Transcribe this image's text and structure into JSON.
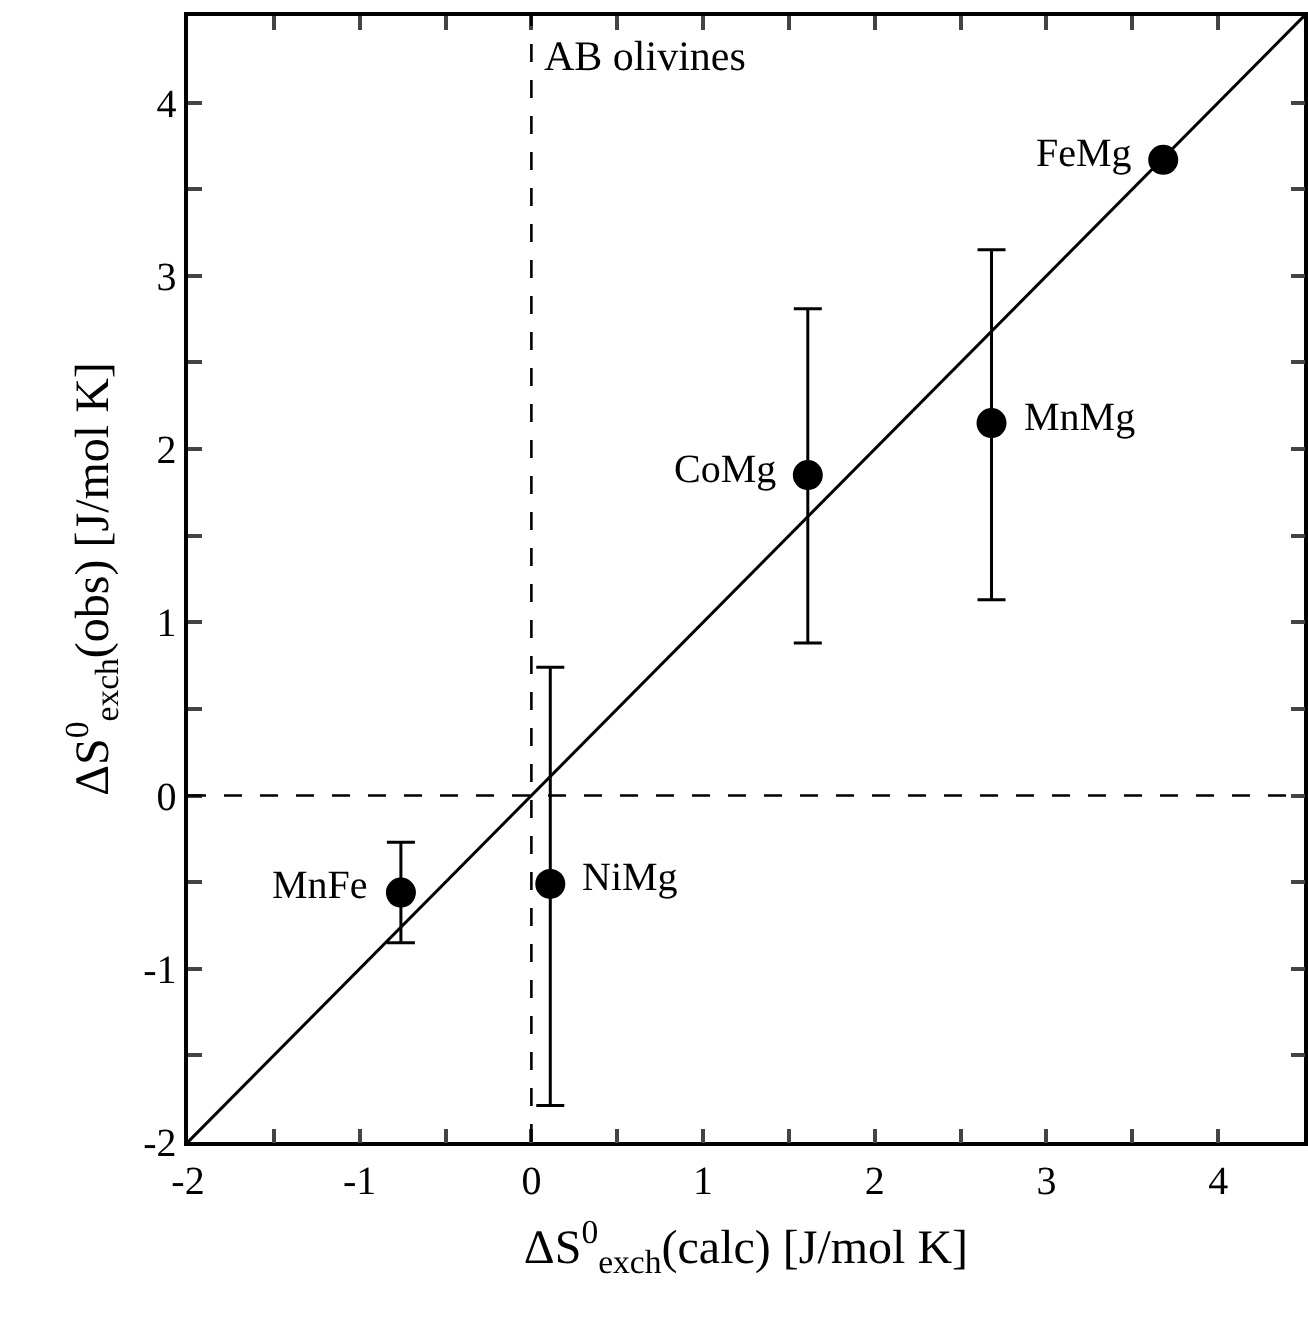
{
  "chart_data": {
    "type": "scatter",
    "xlabel": "ΔS$^{0}$$_{exch}$(calc) [J/mol K]",
    "ylabel": "ΔS$^{0}$$_{exch}$(obs) [J/mol K]",
    "xlim": [
      -2,
      4.5
    ],
    "ylim": [
      -2,
      4.5
    ],
    "xticks": [
      -2,
      {
        "value": -1.5,
        "label": null
      },
      -1,
      {
        "value": -0.5,
        "label": null
      },
      0,
      {
        "value": 0.5,
        "label": null
      },
      1,
      {
        "value": 1.5,
        "label": null
      },
      2,
      {
        "value": 2.5,
        "label": null
      },
      3,
      {
        "value": 3.5,
        "label": null
      },
      4
    ],
    "yticks": [
      -2,
      {
        "value": -1.5,
        "label": null
      },
      -1,
      {
        "value": -0.5,
        "label": null
      },
      0,
      {
        "value": 0.5,
        "label": null
      },
      1,
      {
        "value": 1.5,
        "label": null
      },
      2,
      {
        "value": 2.5,
        "label": null
      },
      3,
      {
        "value": 3.5,
        "label": null
      },
      4
    ],
    "grid": false,
    "marker": "circle",
    "series": [
      {
        "color": "#000000",
        "x": [
          -0.76,
          0.11,
          1.61,
          2.68,
          3.68
        ],
        "values": [
          -0.56,
          -0.51,
          1.85,
          2.15,
          3.67
        ],
        "errors": [
          [
            -0.85,
            -0.27
          ],
          [
            -1.79,
            0.74
          ],
          [
            0.88,
            2.81
          ],
          [
            1.13,
            3.15
          ],
          null
        ]
      },
      {
        "type": "line",
        "color": "#000000",
        "line_style": "solid",
        "marker": "none",
        "x": [
          -2,
          4.5
        ],
        "values": [
          -2,
          4.5
        ]
      }
    ],
    "ref_lines": [
      {
        "axis": "x",
        "value": 0,
        "label": "AB olivines",
        "line_style": "dashed",
        "color": "#000000"
      },
      {
        "axis": "y",
        "value": 0,
        "line_style": "dashed",
        "color": "#000000"
      }
    ],
    "annotations": [
      {
        "text": "MnFe",
        "x": -0.76,
        "y": -0.56
      },
      {
        "text": "NiMg",
        "x": 0.11,
        "y": -0.51
      },
      {
        "text": "CoMg",
        "x": 1.61,
        "y": 1.85
      },
      {
        "text": "MnMg",
        "x": 2.68,
        "y": 2.15
      },
      {
        "text": "FeMg",
        "x": 3.68,
        "y": 3.67
      }
    ]
  }
}
